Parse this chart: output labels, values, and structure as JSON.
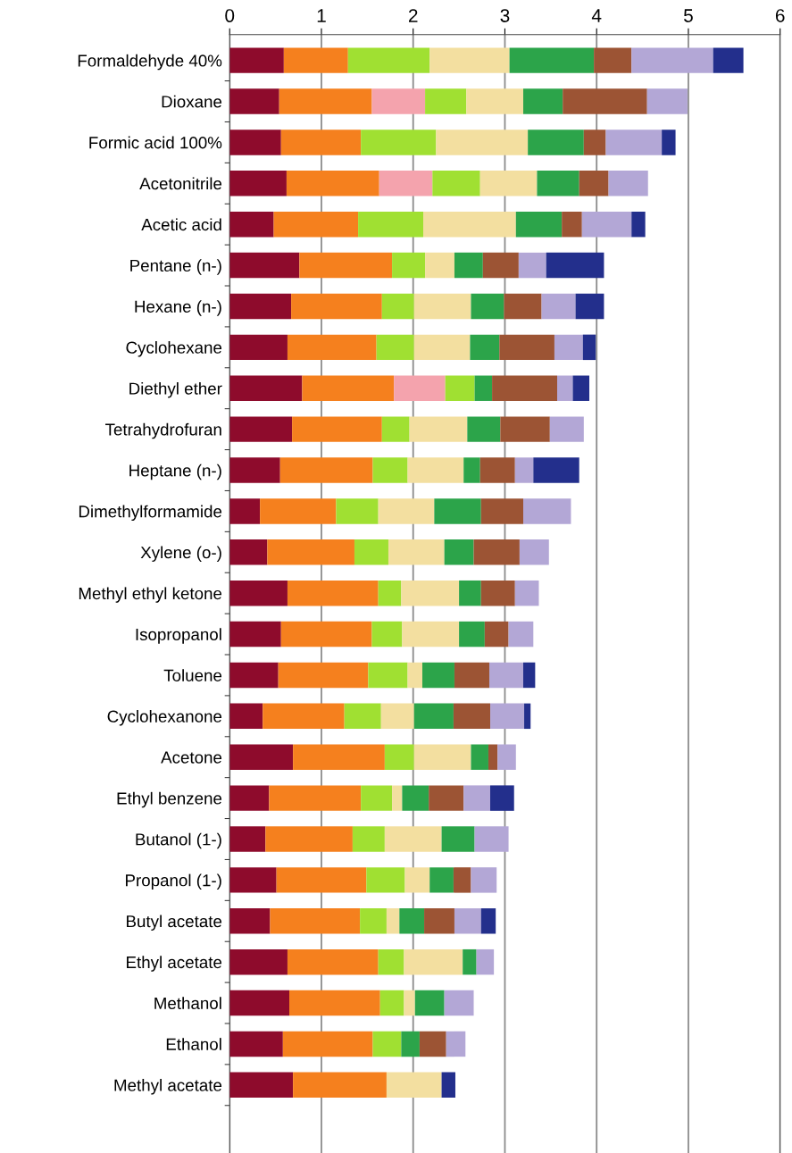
{
  "chart_data": {
    "type": "bar",
    "orientation": "horizontal",
    "stacked": true,
    "categories": [
      "Formaldehyde 40%",
      "Dioxane",
      "Formic acid 100%",
      "Acetonitrile",
      "Acetic acid",
      "Pentane (n-)",
      "Hexane (n-)",
      "Cyclohexane",
      "Diethyl ether",
      "Tetrahydrofuran",
      "Heptane (n-)",
      "Dimethylformamide",
      "Xylene (o-)",
      "Methyl ethyl ketone",
      "Isopropanol",
      "Toluene",
      "Cyclohexanone",
      "Acetone",
      "Ethyl benzene",
      "Butanol (1-)",
      "Propanol (1-)",
      "Butyl acetate",
      "Ethyl acetate",
      "Methanol",
      "Ethanol",
      "Methyl acetate"
    ],
    "series": [
      {
        "color": "#8e0b2c",
        "values": [
          0.59,
          0.54,
          0.56,
          0.62,
          0.48,
          0.76,
          0.67,
          0.63,
          0.79,
          0.68,
          0.55,
          0.33,
          0.41,
          0.63,
          0.56,
          0.53,
          0.36,
          0.69,
          0.43,
          0.39,
          0.51,
          0.44,
          0.63,
          0.65,
          0.58,
          0.69
        ]
      },
      {
        "color": "#f5801e",
        "values": [
          0.7,
          1.01,
          0.87,
          1.01,
          0.92,
          1.01,
          0.99,
          0.97,
          1.0,
          0.98,
          1.01,
          0.83,
          0.95,
          0.99,
          0.99,
          0.98,
          0.89,
          1.0,
          1.0,
          0.95,
          0.98,
          0.98,
          0.99,
          0.99,
          0.98,
          1.02
        ]
      },
      {
        "color": "#f4a3ad",
        "values": [
          null,
          0.58,
          null,
          0.58,
          null,
          null,
          null,
          null,
          0.56,
          null,
          null,
          null,
          null,
          null,
          null,
          null,
          null,
          null,
          null,
          null,
          null,
          null,
          null,
          null,
          null,
          null
        ]
      },
      {
        "color": "#a0e032",
        "values": [
          0.89,
          0.45,
          0.82,
          0.52,
          0.71,
          0.36,
          0.35,
          0.41,
          0.32,
          0.3,
          0.38,
          0.46,
          0.37,
          0.25,
          0.33,
          0.43,
          0.4,
          0.32,
          0.34,
          0.35,
          0.42,
          0.29,
          0.28,
          0.26,
          0.31,
          null
        ]
      },
      {
        "color": "#f3dfa0",
        "values": [
          0.87,
          0.62,
          1.0,
          0.62,
          1.01,
          0.32,
          0.62,
          0.61,
          null,
          0.63,
          0.61,
          0.61,
          0.61,
          0.63,
          0.62,
          0.16,
          0.36,
          0.62,
          0.11,
          0.62,
          0.27,
          0.14,
          0.64,
          0.12,
          null,
          0.6
        ]
      },
      {
        "color": "#2ca44a",
        "values": [
          0.92,
          0.43,
          0.61,
          0.46,
          0.5,
          0.31,
          0.36,
          0.32,
          0.19,
          0.36,
          0.18,
          0.51,
          0.32,
          0.24,
          0.28,
          0.35,
          0.43,
          0.19,
          0.29,
          0.36,
          0.26,
          0.27,
          0.15,
          0.32,
          0.2,
          null
        ]
      },
      {
        "color": "#9c5434",
        "values": [
          0.41,
          0.92,
          0.24,
          0.32,
          0.22,
          0.39,
          0.41,
          0.6,
          0.71,
          0.54,
          0.38,
          0.46,
          0.5,
          0.37,
          0.26,
          0.38,
          0.4,
          0.1,
          0.38,
          null,
          0.19,
          0.33,
          null,
          null,
          0.29,
          null
        ]
      },
      {
        "color": "#b3a7d6",
        "values": [
          0.89,
          0.44,
          0.61,
          0.43,
          0.54,
          0.3,
          0.37,
          0.31,
          0.17,
          0.37,
          0.2,
          0.52,
          0.32,
          0.26,
          0.27,
          0.37,
          0.37,
          0.2,
          0.29,
          0.37,
          0.28,
          0.29,
          0.19,
          0.32,
          0.21,
          null
        ]
      },
      {
        "color": "#232f8c",
        "values": [
          0.33,
          null,
          0.15,
          null,
          0.15,
          0.63,
          0.31,
          0.14,
          0.18,
          null,
          0.5,
          null,
          null,
          null,
          null,
          0.13,
          0.07,
          null,
          0.26,
          null,
          null,
          0.16,
          null,
          null,
          null,
          0.15
        ]
      }
    ],
    "xlim": [
      0,
      6
    ],
    "xticks": [
      0,
      1,
      2,
      3,
      4,
      5,
      6
    ],
    "grid": "x"
  }
}
